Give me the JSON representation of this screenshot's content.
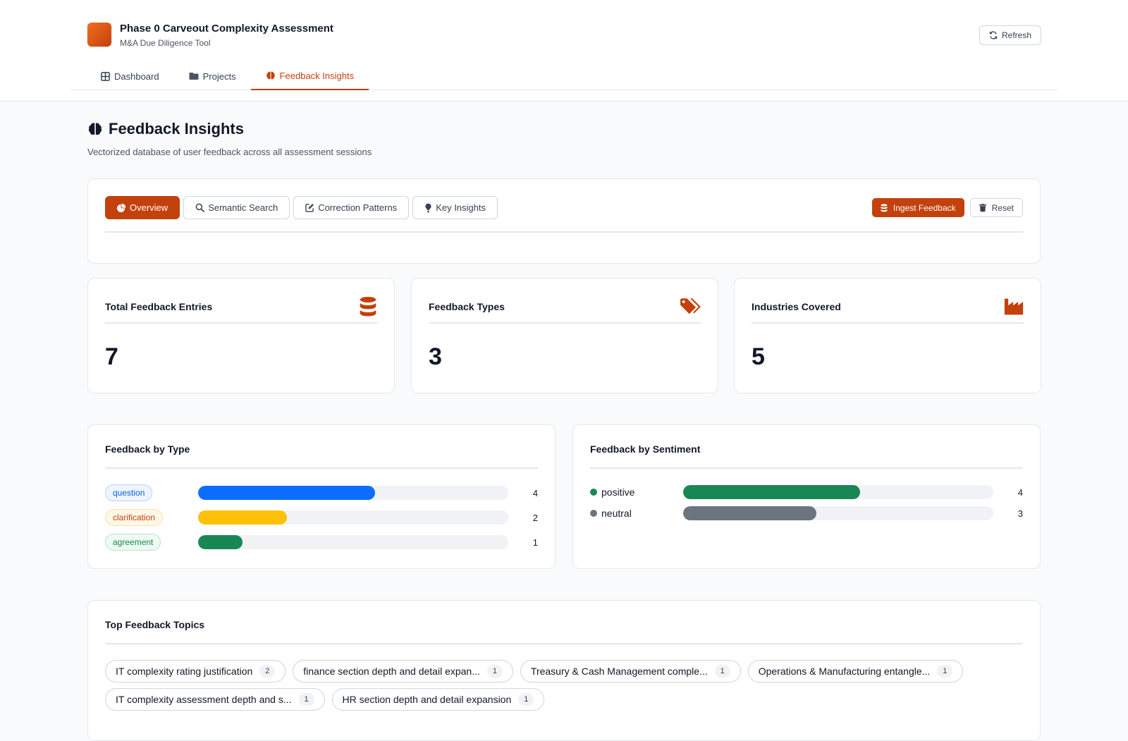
{
  "header": {
    "app_title": "Phase 0 Carveout Complexity Assessment",
    "app_subtitle": "M&A Due Diligence Tool",
    "refresh_label": "Refresh"
  },
  "nav": {
    "tabs": [
      {
        "label": "Dashboard",
        "icon": "grid-icon"
      },
      {
        "label": "Projects",
        "icon": "folder-icon"
      },
      {
        "label": "Feedback Insights",
        "icon": "brain-icon",
        "active": true
      }
    ]
  },
  "page": {
    "title": "Feedback Insights",
    "description": "Vectorized database of user feedback across all assessment sessions"
  },
  "view_tabs": [
    {
      "label": "Overview",
      "icon": "pie-chart-icon",
      "active": true
    },
    {
      "label": "Semantic Search",
      "icon": "search-icon"
    },
    {
      "label": "Correction Patterns",
      "icon": "edit-icon"
    },
    {
      "label": "Key Insights",
      "icon": "lightbulb-icon"
    }
  ],
  "actions": {
    "ingest_label": "Ingest Feedback",
    "reset_label": "Reset"
  },
  "stats": [
    {
      "title": "Total Feedback Entries",
      "value": "7",
      "icon": "database-icon"
    },
    {
      "title": "Feedback Types",
      "value": "3",
      "icon": "tags-icon"
    },
    {
      "title": "Industries Covered",
      "value": "5",
      "icon": "industry-icon"
    }
  ],
  "feedback_by_type": {
    "title": "Feedback by Type",
    "max": 7,
    "items": [
      {
        "label": "question",
        "count": "4",
        "value": 4,
        "color": "#0d6efd",
        "pill_bg": "#eef5ff",
        "pill_border": "#b9d4fb",
        "pill_text": "#0b5ed7"
      },
      {
        "label": "clarification",
        "count": "2",
        "value": 2,
        "color": "#ffc107",
        "pill_bg": "#fff8e6",
        "pill_border": "#fde2a4",
        "pill_text": "#c2410c"
      },
      {
        "label": "agreement",
        "count": "1",
        "value": 1,
        "color": "#198754",
        "pill_bg": "#eefaf3",
        "pill_border": "#b9e6cb",
        "pill_text": "#198754"
      }
    ]
  },
  "feedback_by_sentiment": {
    "title": "Feedback by Sentiment",
    "max": 7,
    "items": [
      {
        "label": "positive",
        "count": "4",
        "value": 4,
        "color": "#198754"
      },
      {
        "label": "neutral",
        "count": "3",
        "value": 3,
        "color": "#6c757d"
      }
    ]
  },
  "topics": {
    "title": "Top Feedback Topics",
    "items": [
      {
        "label": "IT complexity rating justification",
        "count": "2"
      },
      {
        "label": "finance section depth and detail expan...",
        "count": "1"
      },
      {
        "label": "Treasury & Cash Management comple...",
        "count": "1"
      },
      {
        "label": "Operations & Manufacturing entangle...",
        "count": "1"
      },
      {
        "label": "IT complexity assessment depth and s...",
        "count": "1"
      },
      {
        "label": "HR section depth and detail expansion",
        "count": "1"
      }
    ]
  },
  "colors": {
    "accent": "#c2410c",
    "border": "#e5e7eb",
    "track": "#f0f2f5"
  }
}
